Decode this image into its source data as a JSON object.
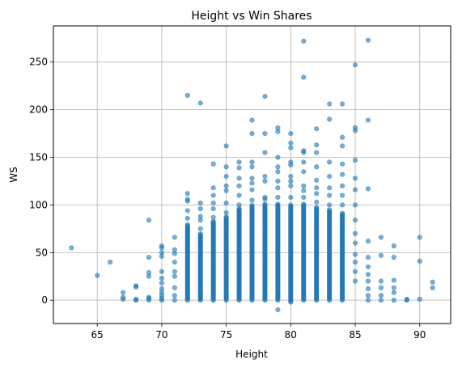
{
  "chart_data": {
    "type": "scatter",
    "title": "Height vs Win Shares",
    "xlabel": "Height",
    "ylabel": "WS",
    "xlim": [
      61.6,
      92.4
    ],
    "ylim": [
      -24.5,
      288
    ],
    "xticks": [
      65,
      70,
      75,
      80,
      85,
      90
    ],
    "yticks": [
      0,
      50,
      100,
      150,
      200,
      250
    ],
    "grid": true,
    "marker_color": "#1f77b4",
    "marker_alpha": 0.6,
    "points_outliers": [
      [
        63,
        55
      ],
      [
        65,
        26
      ],
      [
        66,
        40
      ],
      [
        67,
        1
      ],
      [
        67,
        3
      ],
      [
        67,
        8
      ],
      [
        68,
        0
      ],
      [
        68,
        1
      ],
      [
        68,
        14
      ],
      [
        68,
        15
      ],
      [
        69,
        0
      ],
      [
        69,
        2
      ],
      [
        69,
        3
      ],
      [
        69,
        25
      ],
      [
        69,
        29
      ],
      [
        69,
        45
      ],
      [
        69,
        84
      ],
      [
        70,
        0
      ],
      [
        70,
        2
      ],
      [
        70,
        5
      ],
      [
        70,
        8
      ],
      [
        70,
        12
      ],
      [
        70,
        18
      ],
      [
        70,
        23
      ],
      [
        70,
        30
      ],
      [
        70,
        46
      ],
      [
        70,
        50
      ],
      [
        70,
        55
      ],
      [
        70,
        57
      ],
      [
        71,
        0
      ],
      [
        71,
        5
      ],
      [
        71,
        13
      ],
      [
        71,
        25
      ],
      [
        71,
        30
      ],
      [
        71,
        40
      ],
      [
        71,
        49
      ],
      [
        71,
        53
      ],
      [
        71,
        66
      ],
      [
        72,
        86
      ],
      [
        72,
        94
      ],
      [
        72,
        104
      ],
      [
        72,
        106
      ],
      [
        72,
        112
      ],
      [
        72,
        215
      ],
      [
        73,
        75
      ],
      [
        73,
        84
      ],
      [
        73,
        88
      ],
      [
        73,
        96
      ],
      [
        73,
        102
      ],
      [
        73,
        207
      ],
      [
        74,
        87
      ],
      [
        74,
        96
      ],
      [
        74,
        102
      ],
      [
        74,
        110
      ],
      [
        74,
        118
      ],
      [
        74,
        143
      ],
      [
        75,
        92
      ],
      [
        75,
        102
      ],
      [
        75,
        115
      ],
      [
        75,
        120
      ],
      [
        75,
        130
      ],
      [
        75,
        140
      ],
      [
        75,
        162
      ],
      [
        76,
        100
      ],
      [
        76,
        110
      ],
      [
        76,
        120
      ],
      [
        76,
        128
      ],
      [
        76,
        139
      ],
      [
        76,
        145
      ],
      [
        77,
        105
      ],
      [
        77,
        116
      ],
      [
        77,
        123
      ],
      [
        77,
        128
      ],
      [
        77,
        140
      ],
      [
        77,
        145
      ],
      [
        77,
        175
      ],
      [
        77,
        189
      ],
      [
        78,
        106
      ],
      [
        78,
        108
      ],
      [
        78,
        125
      ],
      [
        78,
        130
      ],
      [
        78,
        155
      ],
      [
        78,
        175
      ],
      [
        78,
        214
      ],
      [
        79,
        -10
      ],
      [
        79,
        108
      ],
      [
        79,
        118
      ],
      [
        79,
        125
      ],
      [
        79,
        135
      ],
      [
        79,
        140
      ],
      [
        79,
        150
      ],
      [
        79,
        177
      ],
      [
        79,
        181
      ],
      [
        80,
        108
      ],
      [
        80,
        120
      ],
      [
        80,
        125
      ],
      [
        80,
        130
      ],
      [
        80,
        142
      ],
      [
        80,
        145
      ],
      [
        80,
        160
      ],
      [
        80,
        165
      ],
      [
        80,
        175
      ],
      [
        81,
        108
      ],
      [
        81,
        115
      ],
      [
        81,
        120
      ],
      [
        81,
        135
      ],
      [
        81,
        145
      ],
      [
        81,
        155
      ],
      [
        81,
        157
      ],
      [
        81,
        234
      ],
      [
        81,
        272
      ],
      [
        82,
        103
      ],
      [
        82,
        112
      ],
      [
        82,
        118
      ],
      [
        82,
        126
      ],
      [
        82,
        140
      ],
      [
        82,
        155
      ],
      [
        82,
        163
      ],
      [
        82,
        180
      ],
      [
        83,
        100
      ],
      [
        83,
        110
      ],
      [
        83,
        118
      ],
      [
        83,
        130
      ],
      [
        83,
        145
      ],
      [
        83,
        190
      ],
      [
        83,
        206
      ],
      [
        84,
        100
      ],
      [
        84,
        110
      ],
      [
        84,
        120
      ],
      [
        84,
        132
      ],
      [
        84,
        143
      ],
      [
        84,
        162
      ],
      [
        84,
        171
      ],
      [
        84,
        206
      ],
      [
        85,
        20
      ],
      [
        85,
        30
      ],
      [
        85,
        40
      ],
      [
        85,
        48
      ],
      [
        85,
        60
      ],
      [
        85,
        70
      ],
      [
        85,
        84
      ],
      [
        85,
        100
      ],
      [
        85,
        116
      ],
      [
        85,
        128
      ],
      [
        85,
        147
      ],
      [
        85,
        178
      ],
      [
        85,
        181
      ],
      [
        85,
        247
      ],
      [
        86,
        0
      ],
      [
        86,
        5
      ],
      [
        86,
        12
      ],
      [
        86,
        20
      ],
      [
        86,
        27
      ],
      [
        86,
        35
      ],
      [
        86,
        45
      ],
      [
        86,
        62
      ],
      [
        86,
        117
      ],
      [
        86,
        189
      ],
      [
        86,
        273
      ],
      [
        87,
        0
      ],
      [
        87,
        5
      ],
      [
        87,
        13
      ],
      [
        87,
        20
      ],
      [
        87,
        47
      ],
      [
        87,
        66
      ],
      [
        88,
        0
      ],
      [
        88,
        8
      ],
      [
        88,
        13
      ],
      [
        88,
        21
      ],
      [
        88,
        45
      ],
      [
        88,
        57
      ],
      [
        89,
        0
      ],
      [
        89,
        1
      ],
      [
        90,
        1
      ],
      [
        90,
        41
      ],
      [
        90,
        66
      ],
      [
        91,
        13
      ],
      [
        91,
        19
      ]
    ],
    "dense_columns": [
      {
        "x": 72,
        "min": 0,
        "max": 80
      },
      {
        "x": 73,
        "min": 0,
        "max": 70
      },
      {
        "x": 74,
        "min": 0,
        "max": 84
      },
      {
        "x": 75,
        "min": 0,
        "max": 88
      },
      {
        "x": 76,
        "min": 0,
        "max": 97
      },
      {
        "x": 77,
        "min": 0,
        "max": 100
      },
      {
        "x": 78,
        "min": 0,
        "max": 101
      },
      {
        "x": 79,
        "min": 0,
        "max": 101
      },
      {
        "x": 80,
        "min": -2,
        "max": 101
      },
      {
        "x": 81,
        "min": 0,
        "max": 102
      },
      {
        "x": 82,
        "min": 0,
        "max": 98
      },
      {
        "x": 83,
        "min": 0,
        "max": 95
      },
      {
        "x": 84,
        "min": 0,
        "max": 92
      }
    ]
  }
}
